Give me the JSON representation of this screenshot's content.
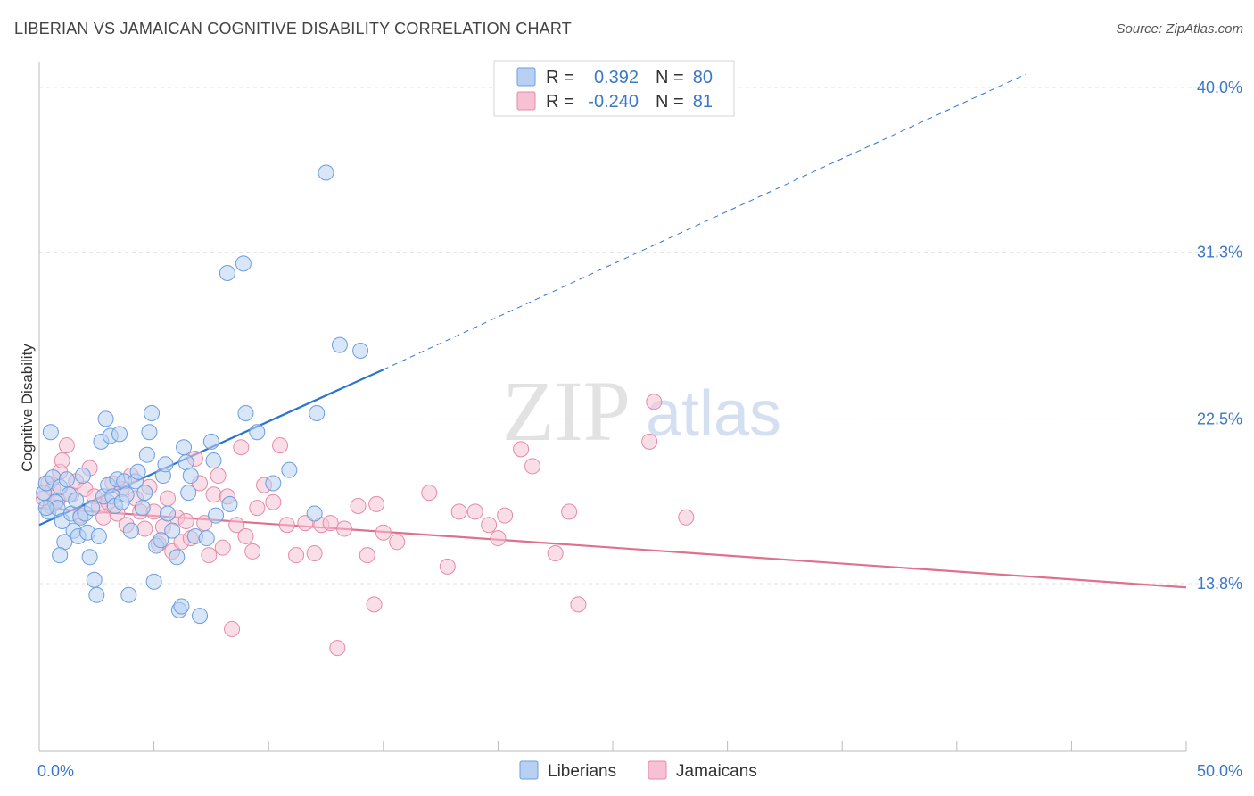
{
  "title": "LIBERIAN VS JAMAICAN COGNITIVE DISABILITY CORRELATION CHART",
  "source": "Source: ZipAtlas.com",
  "watermark": {
    "zip": "ZIP",
    "atlas": "atlas"
  },
  "colors": {
    "liberians_fill": "#b8d1f3",
    "liberians_stroke": "#6b9ee0",
    "liberians_line": "#2d74d2",
    "jamaicans_fill": "#f6c2d3",
    "jamaicans_stroke": "#e58aa8",
    "jamaicans_line": "#e0708f",
    "tick_label": "#3a78c8",
    "grid": "#e2e2e2"
  },
  "legend_top": {
    "rows": [
      {
        "r_label": "R =",
        "r_value": "0.392",
        "n_label": "N =",
        "n_value": "80"
      },
      {
        "r_label": "R =",
        "r_value": "-0.240",
        "n_label": "N =",
        "n_value": "81"
      }
    ]
  },
  "legend_bottom": [
    "Liberians",
    "Jamaicans"
  ],
  "chart_data": {
    "type": "scatter",
    "title": "LIBERIAN VS JAMAICAN COGNITIVE DISABILITY CORRELATION CHART",
    "xlabel": "",
    "ylabel": "Cognitive Disability",
    "xlim": [
      0,
      50
    ],
    "ylim": [
      4.5,
      41.5
    ],
    "x_tick_labels": [
      "0.0%",
      "50.0%"
    ],
    "y_ticks": [
      13.8,
      22.5,
      31.3,
      40.0
    ],
    "y_tick_labels": [
      "13.8%",
      "22.5%",
      "31.3%",
      "40.0%"
    ],
    "grid": true,
    "legend_position": "top-center",
    "series": [
      {
        "name": "Liberians",
        "R": 0.392,
        "N": 80,
        "trend": {
          "x": [
            0,
            15
          ],
          "y": [
            16.9,
            25.1
          ],
          "extended_to": [
            43,
            40.7
          ]
        },
        "points": [
          [
            0.2,
            18.6
          ],
          [
            0.3,
            19.1
          ],
          [
            0.4,
            17.6
          ],
          [
            0.5,
            21.8
          ],
          [
            0.6,
            19.4
          ],
          [
            0.7,
            18.1
          ],
          [
            0.8,
            17.8
          ],
          [
            0.9,
            18.9
          ],
          [
            1.0,
            17.1
          ],
          [
            1.1,
            16.0
          ],
          [
            1.2,
            19.3
          ],
          [
            1.3,
            18.5
          ],
          [
            1.4,
            17.5
          ],
          [
            1.5,
            16.6
          ],
          [
            1.6,
            18.2
          ],
          [
            1.7,
            16.3
          ],
          [
            1.8,
            17.3
          ],
          [
            1.9,
            19.5
          ],
          [
            2.0,
            17.5
          ],
          [
            2.1,
            16.5
          ],
          [
            2.2,
            15.2
          ],
          [
            2.3,
            17.8
          ],
          [
            2.4,
            14.0
          ],
          [
            2.5,
            13.2
          ],
          [
            2.6,
            16.3
          ],
          [
            2.7,
            21.3
          ],
          [
            2.8,
            18.4
          ],
          [
            2.9,
            22.5
          ],
          [
            3.0,
            19.0
          ],
          [
            3.1,
            21.6
          ],
          [
            3.2,
            18.4
          ],
          [
            3.3,
            17.9
          ],
          [
            3.4,
            19.3
          ],
          [
            3.5,
            21.7
          ],
          [
            3.6,
            18.1
          ],
          [
            3.7,
            19.2
          ],
          [
            3.8,
            18.5
          ],
          [
            3.9,
            13.2
          ],
          [
            4.0,
            16.6
          ],
          [
            4.2,
            19.2
          ],
          [
            4.3,
            19.7
          ],
          [
            4.5,
            17.8
          ],
          [
            4.6,
            18.6
          ],
          [
            4.7,
            20.6
          ],
          [
            4.8,
            21.8
          ],
          [
            4.9,
            22.8
          ],
          [
            5.0,
            13.9
          ],
          [
            5.1,
            15.8
          ],
          [
            5.3,
            16.1
          ],
          [
            5.4,
            19.5
          ],
          [
            5.5,
            20.1
          ],
          [
            5.6,
            17.5
          ],
          [
            5.8,
            16.6
          ],
          [
            6.0,
            15.2
          ],
          [
            6.1,
            12.4
          ],
          [
            6.2,
            12.6
          ],
          [
            6.3,
            21.0
          ],
          [
            6.4,
            20.2
          ],
          [
            6.5,
            18.6
          ],
          [
            6.6,
            19.5
          ],
          [
            6.8,
            16.3
          ],
          [
            7.0,
            12.1
          ],
          [
            7.3,
            16.2
          ],
          [
            7.5,
            21.3
          ],
          [
            7.6,
            20.3
          ],
          [
            7.7,
            17.4
          ],
          [
            8.2,
            30.2
          ],
          [
            8.3,
            18.0
          ],
          [
            8.9,
            30.7
          ],
          [
            9.0,
            22.8
          ],
          [
            9.5,
            21.8
          ],
          [
            10.2,
            19.1
          ],
          [
            10.9,
            19.8
          ],
          [
            12.0,
            17.5
          ],
          [
            12.1,
            22.8
          ],
          [
            12.5,
            35.5
          ],
          [
            13.1,
            26.4
          ],
          [
            14.0,
            26.1
          ],
          [
            0.3,
            17.8
          ],
          [
            0.9,
            15.3
          ]
        ]
      },
      {
        "name": "Jamaicans",
        "R": -0.24,
        "N": 81,
        "trend": {
          "x": [
            0,
            50
          ],
          "y": [
            17.8,
            13.6
          ]
        },
        "points": [
          [
            0.2,
            18.3
          ],
          [
            0.4,
            19.1
          ],
          [
            0.5,
            17.9
          ],
          [
            0.6,
            18.8
          ],
          [
            0.8,
            18.2
          ],
          [
            0.9,
            19.7
          ],
          [
            1.0,
            20.3
          ],
          [
            1.2,
            21.1
          ],
          [
            1.4,
            18.5
          ],
          [
            1.6,
            19.2
          ],
          [
            1.8,
            17.4
          ],
          [
            2.0,
            18.8
          ],
          [
            2.2,
            19.9
          ],
          [
            2.4,
            18.4
          ],
          [
            2.6,
            17.9
          ],
          [
            2.8,
            17.3
          ],
          [
            3.0,
            18.1
          ],
          [
            3.2,
            19.1
          ],
          [
            3.4,
            17.5
          ],
          [
            3.6,
            18.8
          ],
          [
            3.8,
            16.9
          ],
          [
            4.0,
            19.5
          ],
          [
            4.2,
            18.3
          ],
          [
            4.4,
            17.6
          ],
          [
            4.6,
            16.7
          ],
          [
            4.8,
            18.9
          ],
          [
            5.0,
            17.6
          ],
          [
            5.2,
            15.9
          ],
          [
            5.4,
            16.8
          ],
          [
            5.6,
            18.3
          ],
          [
            5.8,
            15.5
          ],
          [
            6.0,
            17.3
          ],
          [
            6.2,
            16.0
          ],
          [
            6.4,
            17.1
          ],
          [
            6.6,
            16.2
          ],
          [
            6.8,
            20.4
          ],
          [
            7.0,
            19.1
          ],
          [
            7.2,
            17.0
          ],
          [
            7.4,
            15.3
          ],
          [
            7.6,
            18.5
          ],
          [
            7.8,
            19.5
          ],
          [
            8.0,
            15.7
          ],
          [
            8.2,
            18.4
          ],
          [
            8.4,
            11.4
          ],
          [
            8.6,
            16.9
          ],
          [
            8.8,
            21.0
          ],
          [
            9.0,
            16.3
          ],
          [
            9.3,
            15.5
          ],
          [
            9.5,
            17.8
          ],
          [
            9.8,
            19.0
          ],
          [
            10.2,
            18.1
          ],
          [
            10.5,
            21.1
          ],
          [
            10.8,
            16.9
          ],
          [
            11.2,
            15.3
          ],
          [
            11.6,
            17.0
          ],
          [
            12.0,
            15.4
          ],
          [
            12.3,
            16.9
          ],
          [
            12.7,
            17.0
          ],
          [
            13.0,
            10.4
          ],
          [
            13.3,
            16.7
          ],
          [
            13.9,
            17.9
          ],
          [
            14.3,
            15.3
          ],
          [
            14.6,
            12.7
          ],
          [
            14.7,
            18.0
          ],
          [
            15.0,
            16.5
          ],
          [
            15.6,
            16.0
          ],
          [
            17.0,
            18.6
          ],
          [
            17.8,
            14.7
          ],
          [
            18.3,
            17.6
          ],
          [
            19.0,
            17.6
          ],
          [
            19.6,
            16.9
          ],
          [
            20.0,
            16.2
          ],
          [
            20.3,
            17.4
          ],
          [
            21.0,
            20.9
          ],
          [
            21.5,
            20.0
          ],
          [
            22.5,
            15.4
          ],
          [
            23.1,
            17.6
          ],
          [
            23.5,
            12.7
          ],
          [
            26.6,
            21.3
          ],
          [
            26.8,
            23.4
          ],
          [
            28.2,
            17.3
          ]
        ]
      }
    ]
  }
}
